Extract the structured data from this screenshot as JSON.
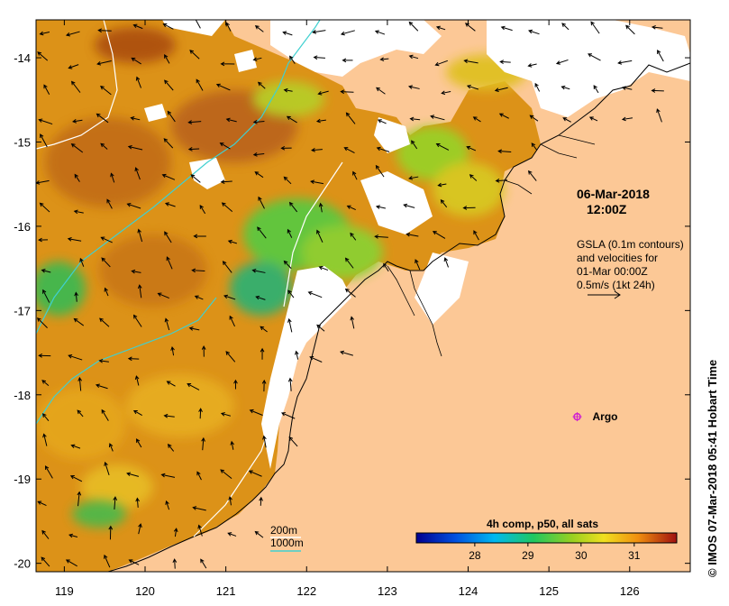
{
  "map": {
    "date_line1": "06-Mar-2018",
    "date_line2": "12:00Z",
    "gsla_note": [
      "GSLA (0.1m contours)",
      "and velocities for",
      "01-Mar 00:00Z",
      "0.5m/s (1kt 24h)"
    ],
    "argo_label": "Argo",
    "argo_position": {
      "lon": 125.35,
      "lat": -18.26
    },
    "credit": "IMOS 07-Mar-2018 05:41 Hobart Time",
    "copyright_symbol": "©",
    "lon_range": [
      118.65,
      126.75
    ],
    "lat_range": [
      -20.1,
      -13.55
    ],
    "lon_ticks": [
      "119",
      "120",
      "121",
      "122",
      "123",
      "124",
      "125",
      "126"
    ],
    "lat_ticks": [
      "-14",
      "-15",
      "-16",
      "-17",
      "-18",
      "-19",
      "-20"
    ],
    "contour_legend": {
      "shallow": "200m",
      "deep": "1000m"
    },
    "colorbar": {
      "title": "4h comp, p50, all sats",
      "ticks": [
        "28",
        "29",
        "30",
        "31"
      ],
      "range": [
        26.9,
        31.8
      ]
    },
    "colors": {
      "land": "#fcc896",
      "warm": "#d98a14",
      "hot": "#b85a10",
      "mid": "#e8c41a",
      "cool": "#4cc040",
      "contour_200m": "#ffffff",
      "contour_1000m": "#40d0d0",
      "argo": "#d020d0"
    }
  }
}
